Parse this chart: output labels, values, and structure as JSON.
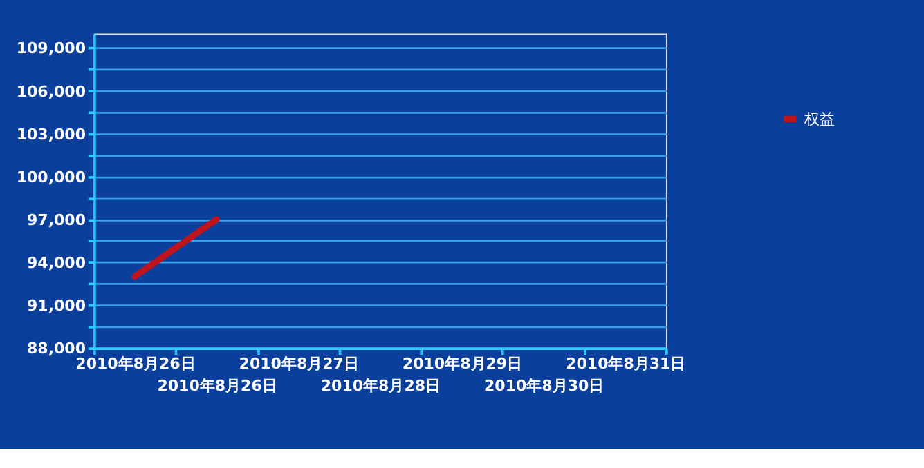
{
  "chart_data": {
    "type": "line",
    "categories": [
      "2010年8月26日",
      "2010年8月26日",
      "2010年8月27日",
      "2010年8月28日",
      "2010年8月29日",
      "2010年8月30日",
      "2010年8月31日"
    ],
    "series": [
      {
        "name": "权益",
        "color": "#c0141c",
        "values": [
          93000,
          97000,
          null,
          null,
          null,
          null,
          null
        ]
      }
    ],
    "ylim": [
      88000,
      110000
    ],
    "yticks": [
      {
        "value": 88000,
        "label": "88,000"
      },
      {
        "value": 89500,
        "label": null
      },
      {
        "value": 91000,
        "label": "91,000"
      },
      {
        "value": 92500,
        "label": null
      },
      {
        "value": 94000,
        "label": "94,000"
      },
      {
        "value": 95500,
        "label": null
      },
      {
        "value": 97000,
        "label": "97,000"
      },
      {
        "value": 98500,
        "label": null
      },
      {
        "value": 100000,
        "label": "100,000"
      },
      {
        "value": 101500,
        "label": null
      },
      {
        "value": 103000,
        "label": "103,000"
      },
      {
        "value": 104500,
        "label": null
      },
      {
        "value": 106000,
        "label": "106,000"
      },
      {
        "value": 107500,
        "label": null
      },
      {
        "value": 109000,
        "label": "109,000"
      }
    ],
    "grid": "y",
    "legend": "right",
    "marker": "none",
    "line_style": "solid"
  }
}
